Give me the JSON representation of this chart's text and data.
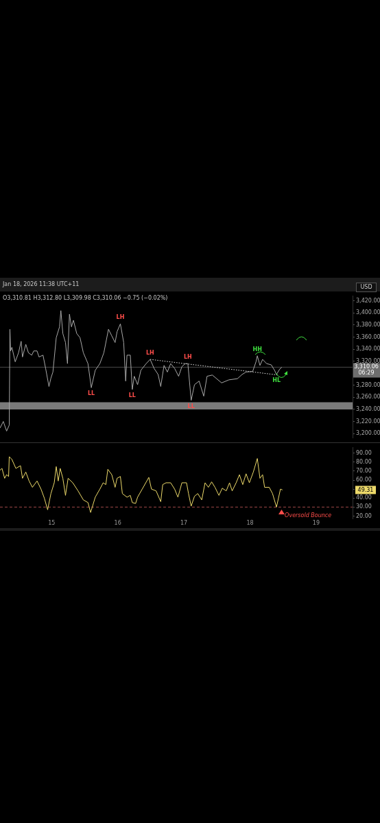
{
  "chart_data": [
    {
      "type": "line",
      "x": [
        14.22,
        14.27,
        14.32,
        14.36,
        14.37,
        14.38,
        14.4,
        14.45,
        14.5,
        14.54,
        14.56,
        14.61,
        14.65,
        14.7,
        14.73,
        14.78,
        14.81,
        14.87,
        14.91,
        14.96,
        14.99,
        15.02,
        15.07,
        15.12,
        15.14,
        15.17,
        15.21,
        15.24,
        15.27,
        15.3,
        15.33,
        15.38,
        15.43,
        15.48,
        15.55,
        15.6,
        15.66,
        15.73,
        15.79,
        15.86,
        15.91,
        15.96,
        15.99,
        16.04,
        16.09,
        16.12,
        16.14,
        16.19,
        16.22,
        16.25,
        16.3,
        16.35,
        16.43,
        16.49,
        16.55,
        16.61,
        16.65,
        16.7,
        16.75,
        16.8,
        16.86,
        16.92,
        16.97,
        17.02,
        17.06,
        17.11,
        17.16,
        17.23,
        17.3,
        17.35,
        17.43,
        17.57,
        17.68,
        17.81,
        17.88,
        17.94,
        18.04,
        18.09,
        18.11,
        18.15,
        18.19,
        18.25,
        18.32,
        18.37,
        18.4,
        18.45,
        18.48
      ],
      "series": [
        {
          "color": "#a8a8a8",
          "values": [
            3209,
            3220,
            3204,
            3214,
            3373,
            3337,
            3343,
            3319,
            3334,
            3353,
            3327,
            3348,
            3334,
            3330,
            3337,
            3337,
            3327,
            3330,
            3308,
            3278,
            3292,
            3302,
            3359,
            3377,
            3404,
            3366,
            3351,
            3316,
            3398,
            3377,
            3388,
            3366,
            3359,
            3334,
            3316,
            3276,
            3305,
            3316,
            3334,
            3373,
            3362,
            3351,
            3369,
            3382,
            3351,
            3287,
            3330,
            3330,
            3273,
            3295,
            3281,
            3305,
            3316,
            3323,
            3308,
            3298,
            3278,
            3313,
            3302,
            3316,
            3308,
            3295,
            3311,
            3316,
            3316,
            3255,
            3281,
            3287,
            3262,
            3295,
            3297,
            3284,
            3289,
            3291,
            3298,
            3302,
            3303,
            3319,
            3329,
            3313,
            3323,
            3316,
            3314,
            3305,
            3298,
            3307,
            3310
          ]
        },
        {
          "type": "line",
          "color": "#e8e8e8",
          "line_style": "dotted",
          "x": [
            16.49,
            18.43
          ],
          "values": [
            3323,
            3297
          ]
        }
      ],
      "xlim": [
        14.22,
        19.55
      ],
      "xticks": [
        15,
        16,
        17,
        18,
        19
      ],
      "ylim": [
        3193,
        3428
      ],
      "yticks": [
        {
          "value": 3200,
          "label": "3,200.00"
        },
        {
          "value": 3220,
          "label": "3,220.00"
        },
        {
          "value": 3240,
          "label": "3,240.00"
        },
        {
          "value": 3260,
          "label": "3,260.00"
        },
        {
          "value": 3280,
          "label": "3,280.00"
        },
        {
          "value": 3300,
          "label": null
        },
        {
          "value": 3320,
          "label": "3,320.00"
        },
        {
          "value": 3340,
          "label": "3,340.00"
        },
        {
          "value": 3360,
          "label": "3,360.00"
        },
        {
          "value": 3380,
          "label": "3,380.00"
        },
        {
          "value": 3400,
          "label": "3,400.00"
        },
        {
          "value": 3420,
          "label": "3,420.00"
        }
      ],
      "tick_labels": "y",
      "legend": false,
      "marker": "none",
      "bands": [
        {
          "axis": "y",
          "from": 3240,
          "to": 3252,
          "color": "#7a7a7a"
        }
      ],
      "ref_lines": [
        {
          "axis": "y",
          "value": 3310.06,
          "label": "3,310.06",
          "color": "#4a4a4a"
        }
      ],
      "annotations": [
        "Jan 18, 2026 11:38 UTC+11",
        "O3,310.81 H3,312.80 L3,309.98 C3,310.06 −0.75 (−0.02%)",
        "USD",
        "06:29",
        {
          "text": "LL",
          "x": 15.6,
          "y": 3276
        },
        {
          "text": "LH",
          "x": 16.04,
          "y": 3382
        },
        {
          "text": "LL",
          "x": 16.22,
          "y": 3273
        },
        {
          "text": "LH",
          "x": 16.49,
          "y": 3323
        },
        {
          "text": "LH",
          "x": 17.06,
          "y": 3316
        },
        {
          "text": "LL",
          "x": 17.11,
          "y": 3255
        },
        {
          "text": "HH",
          "x": 18.11,
          "y": 3329
        },
        {
          "text": "HL",
          "x": 18.4,
          "y": 3298
        }
      ]
    },
    {
      "type": "line",
      "x": [
        14.22,
        14.25,
        14.29,
        14.32,
        14.35,
        14.36,
        14.4,
        14.46,
        14.53,
        14.56,
        14.61,
        14.66,
        14.71,
        14.78,
        14.84,
        14.89,
        14.94,
        14.99,
        15.04,
        15.07,
        15.1,
        15.13,
        15.17,
        15.21,
        15.25,
        15.32,
        15.4,
        15.48,
        15.55,
        15.59,
        15.66,
        15.73,
        15.78,
        15.82,
        15.85,
        15.91,
        15.96,
        15.99,
        16.04,
        16.07,
        16.14,
        16.19,
        16.22,
        16.27,
        16.3,
        16.37,
        16.47,
        16.51,
        16.58,
        16.65,
        16.68,
        16.73,
        16.8,
        16.86,
        16.91,
        16.97,
        17.04,
        17.07,
        17.11,
        17.16,
        17.21,
        17.27,
        17.32,
        17.37,
        17.42,
        17.47,
        17.53,
        17.58,
        17.64,
        17.69,
        17.73,
        17.79,
        17.84,
        17.89,
        17.94,
        17.99,
        18.05,
        18.11,
        18.15,
        18.19,
        18.22,
        18.29,
        18.34,
        18.4,
        18.46,
        18.49
      ],
      "series": [
        {
          "color": "#ecd96a",
          "values": [
            71,
            73,
            62,
            66,
            64,
            86,
            83,
            73,
            76,
            62,
            69,
            59,
            52,
            59,
            50,
            40,
            27,
            45,
            57,
            75,
            59,
            73,
            62,
            43,
            62,
            57,
            48,
            38,
            35,
            24,
            41,
            50,
            57,
            55,
            72,
            66,
            52,
            62,
            64,
            45,
            41,
            43,
            35,
            34,
            41,
            50,
            63,
            50,
            48,
            36,
            55,
            57,
            57,
            50,
            41,
            57,
            57,
            45,
            31,
            42,
            45,
            38,
            57,
            52,
            58,
            52,
            43,
            51,
            48,
            57,
            48,
            57,
            66,
            55,
            67,
            57,
            69,
            84,
            62,
            66,
            52,
            52,
            45,
            30,
            50,
            49
          ]
        }
      ],
      "xlim": [
        14.22,
        19.55
      ],
      "xticks": [
        15,
        16,
        17,
        18,
        19
      ],
      "ylim": [
        17,
        96
      ],
      "yticks": [
        {
          "value": 20,
          "label": "20.00"
        },
        {
          "value": 30,
          "label": "30.00"
        },
        {
          "value": 40,
          "label": "40.00"
        },
        {
          "value": 50,
          "label": null
        },
        {
          "value": 60,
          "label": "60.00"
        },
        {
          "value": 70,
          "label": "70.00"
        },
        {
          "value": 80,
          "label": "80.00"
        },
        {
          "value": 90,
          "label": "90.00"
        }
      ],
      "legend": false,
      "marker": "none",
      "ref_lines": [
        {
          "axis": "y",
          "value": 30,
          "color": "#a04848",
          "line_style": "dashed"
        }
      ],
      "annotations": [
        "49.31",
        {
          "text": "Oversold Bounce",
          "x": 18.4,
          "y": 30
        }
      ]
    }
  ]
}
